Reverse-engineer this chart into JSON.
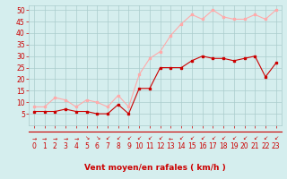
{
  "x": [
    0,
    1,
    2,
    3,
    4,
    5,
    6,
    7,
    8,
    9,
    10,
    11,
    12,
    13,
    14,
    15,
    16,
    17,
    18,
    19,
    20,
    21,
    22,
    23
  ],
  "mean_wind": [
    6,
    6,
    6,
    7,
    6,
    6,
    5,
    5,
    9,
    5,
    16,
    16,
    25,
    25,
    25,
    28,
    30,
    29,
    29,
    28,
    29,
    30,
    21,
    27
  ],
  "gust_wind": [
    8,
    8,
    12,
    11,
    8,
    11,
    10,
    8,
    13,
    8,
    22,
    29,
    32,
    39,
    44,
    48,
    46,
    50,
    47,
    46,
    46,
    48,
    46,
    50
  ],
  "mean_color": "#cc0000",
  "gust_color": "#ffaaaa",
  "bg_color": "#d5eeee",
  "grid_color": "#aacccc",
  "xlabel": "Vent moyen/en rafales ( km/h )",
  "ylim": [
    0,
    52
  ],
  "xlim": [
    -0.5,
    23.5
  ],
  "yticks": [
    5,
    10,
    15,
    20,
    25,
    30,
    35,
    40,
    45,
    50
  ],
  "xticks": [
    0,
    1,
    2,
    3,
    4,
    5,
    6,
    7,
    8,
    9,
    10,
    11,
    12,
    13,
    14,
    15,
    16,
    17,
    18,
    19,
    20,
    21,
    22,
    23
  ],
  "axis_fontsize": 6.5,
  "tick_fontsize": 5.5,
  "arrows": [
    "→",
    "→",
    "→",
    "→",
    "→",
    "↘",
    "↘",
    "↙",
    "↙",
    "↙",
    "↙",
    "↙",
    "↙",
    "←",
    "↙",
    "↙",
    "↙",
    "↙",
    "↙",
    "↙",
    "↙",
    "↙",
    "↙",
    "↙"
  ]
}
